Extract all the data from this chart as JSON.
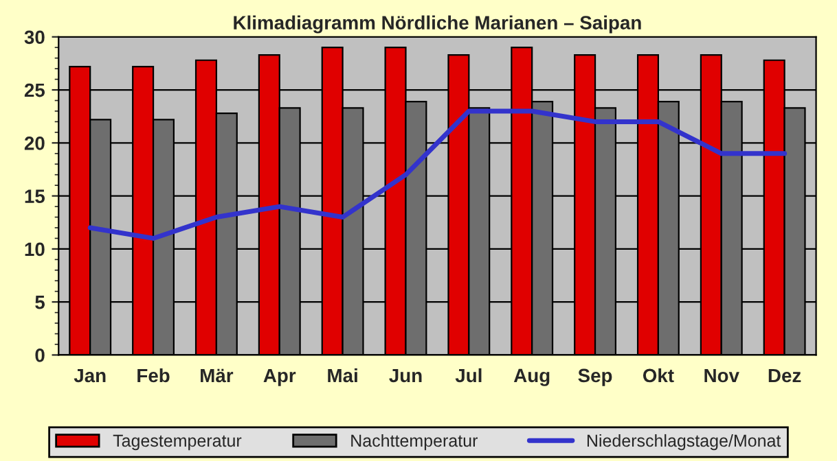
{
  "chart_data": {
    "type": "bar",
    "title": "Klimadiagramm Nördliche Marianen – Saipan",
    "categories": [
      "Jan",
      "Feb",
      "Mär",
      "Apr",
      "Mai",
      "Jun",
      "Jul",
      "Aug",
      "Sep",
      "Okt",
      "Nov",
      "Dez"
    ],
    "series": [
      {
        "name": "Tagestemperatur",
        "color": "#e00000",
        "values": [
          27.2,
          27.2,
          27.8,
          28.3,
          29,
          29,
          28.3,
          29,
          28.3,
          28.3,
          28.3,
          27.8
        ]
      },
      {
        "name": "Nachttemperatur",
        "color": "#6e6e6e",
        "values": [
          22.2,
          22.2,
          22.8,
          23.3,
          23.3,
          23.9,
          23.3,
          23.9,
          23.3,
          23.9,
          23.9,
          23.3
        ]
      },
      {
        "name": "Niederschlagstage/Monat",
        "type": "line",
        "color": "#3333cc",
        "values": [
          12,
          11,
          13,
          14,
          13,
          17,
          23,
          23,
          22,
          22,
          19,
          19
        ]
      }
    ],
    "ylim": [
      0,
      30
    ],
    "yticks": [
      0,
      5,
      10,
      15,
      20,
      25,
      30
    ],
    "grid": "y",
    "legend": "bottom"
  }
}
